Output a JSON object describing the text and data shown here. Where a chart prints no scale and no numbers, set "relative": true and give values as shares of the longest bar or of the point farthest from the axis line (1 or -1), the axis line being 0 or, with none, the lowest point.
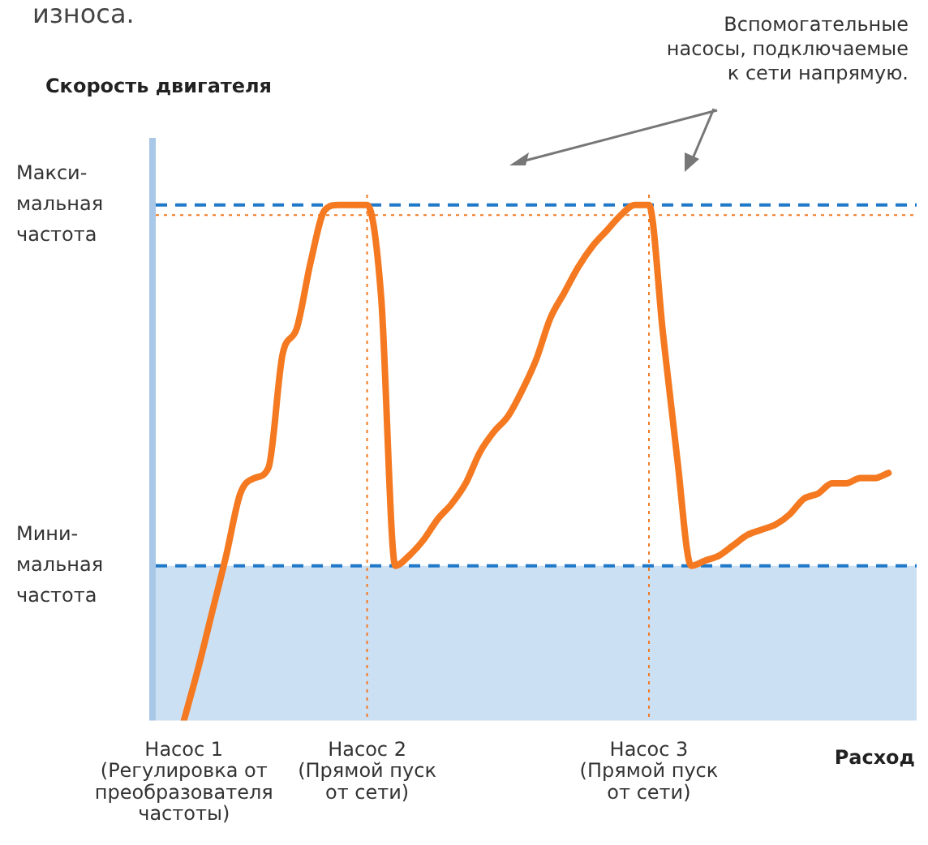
{
  "chart_data": {
    "type": "line",
    "relative": true,
    "xlabel": "Расход",
    "annotations": [
      "износа.",
      "Вспомогательные\nнасосы, подключаемые\nк сети напрямую.",
      "Скорость двигателя"
    ],
    "categories": [
      "Насос 1\n(Регулировка от\nпреобразователя\nчастоты)",
      null,
      null,
      null,
      null,
      null,
      null,
      null,
      null,
      null,
      null,
      null,
      null,
      "Насос 2\n(Прямой пуск\nот сети)",
      null,
      null,
      null,
      null,
      null,
      null,
      null,
      null,
      null,
      null,
      null,
      null,
      null,
      null,
      null,
      null,
      null,
      null,
      null,
      "Насос 3\n(Прямой пуск\nот сети)",
      null,
      null,
      null,
      null,
      null,
      null,
      null,
      null,
      null,
      null,
      null,
      null,
      null,
      null,
      null,
      null,
      null
    ],
    "series": [
      {
        "color": "#f47920",
        "values": [
          0,
          0.1,
          0.21,
          0.32,
          0.44,
          0.47,
          0.49,
          0.71,
          0.76,
          0.89,
          0.99,
          1,
          1,
          1,
          0.82,
          0.3,
          0.32,
          0.35,
          0.39,
          0.42,
          0.46,
          0.52,
          0.56,
          0.59,
          0.64,
          0.7,
          0.78,
          0.83,
          0.88,
          0.92,
          0.95,
          0.98,
          1,
          1,
          0.75,
          0.51,
          0.3,
          0.31,
          0.32,
          0.34,
          0.36,
          0.37,
          0.38,
          0.4,
          0.43,
          0.44,
          0.46,
          0.46,
          0.47,
          0.47,
          0.48
        ]
      }
    ],
    "ref_lines": [
      {
        "axis": "y",
        "value": 1,
        "label": "Макси-\nмальная\nчастота",
        "color": "#1f78c8",
        "line_style": "dashed"
      },
      {
        "axis": "y",
        "value": 0.3,
        "label": "Мини-\nмальная\nчастота",
        "color": "#1f78c8",
        "line_style": "dashed"
      },
      {
        "axis": "y",
        "value": 0.98,
        "color": "#f47920",
        "line_style": "dotted"
      },
      {
        "axis": "x",
        "value": "Насос 2\n(Прямой пуск\nот сети)",
        "color": "#f47920",
        "line_style": "dotted"
      },
      {
        "axis": "x",
        "value": "Насос 3\n(Прямой пуск\nот сети)",
        "color": "#f47920",
        "line_style": "dotted"
      }
    ],
    "bands": [
      {
        "axis": "y",
        "from": 0,
        "to": 0.3,
        "color": "#cce0f4"
      }
    ],
    "legend": false,
    "grid": false,
    "marker": "none",
    "line_style": "solid"
  }
}
